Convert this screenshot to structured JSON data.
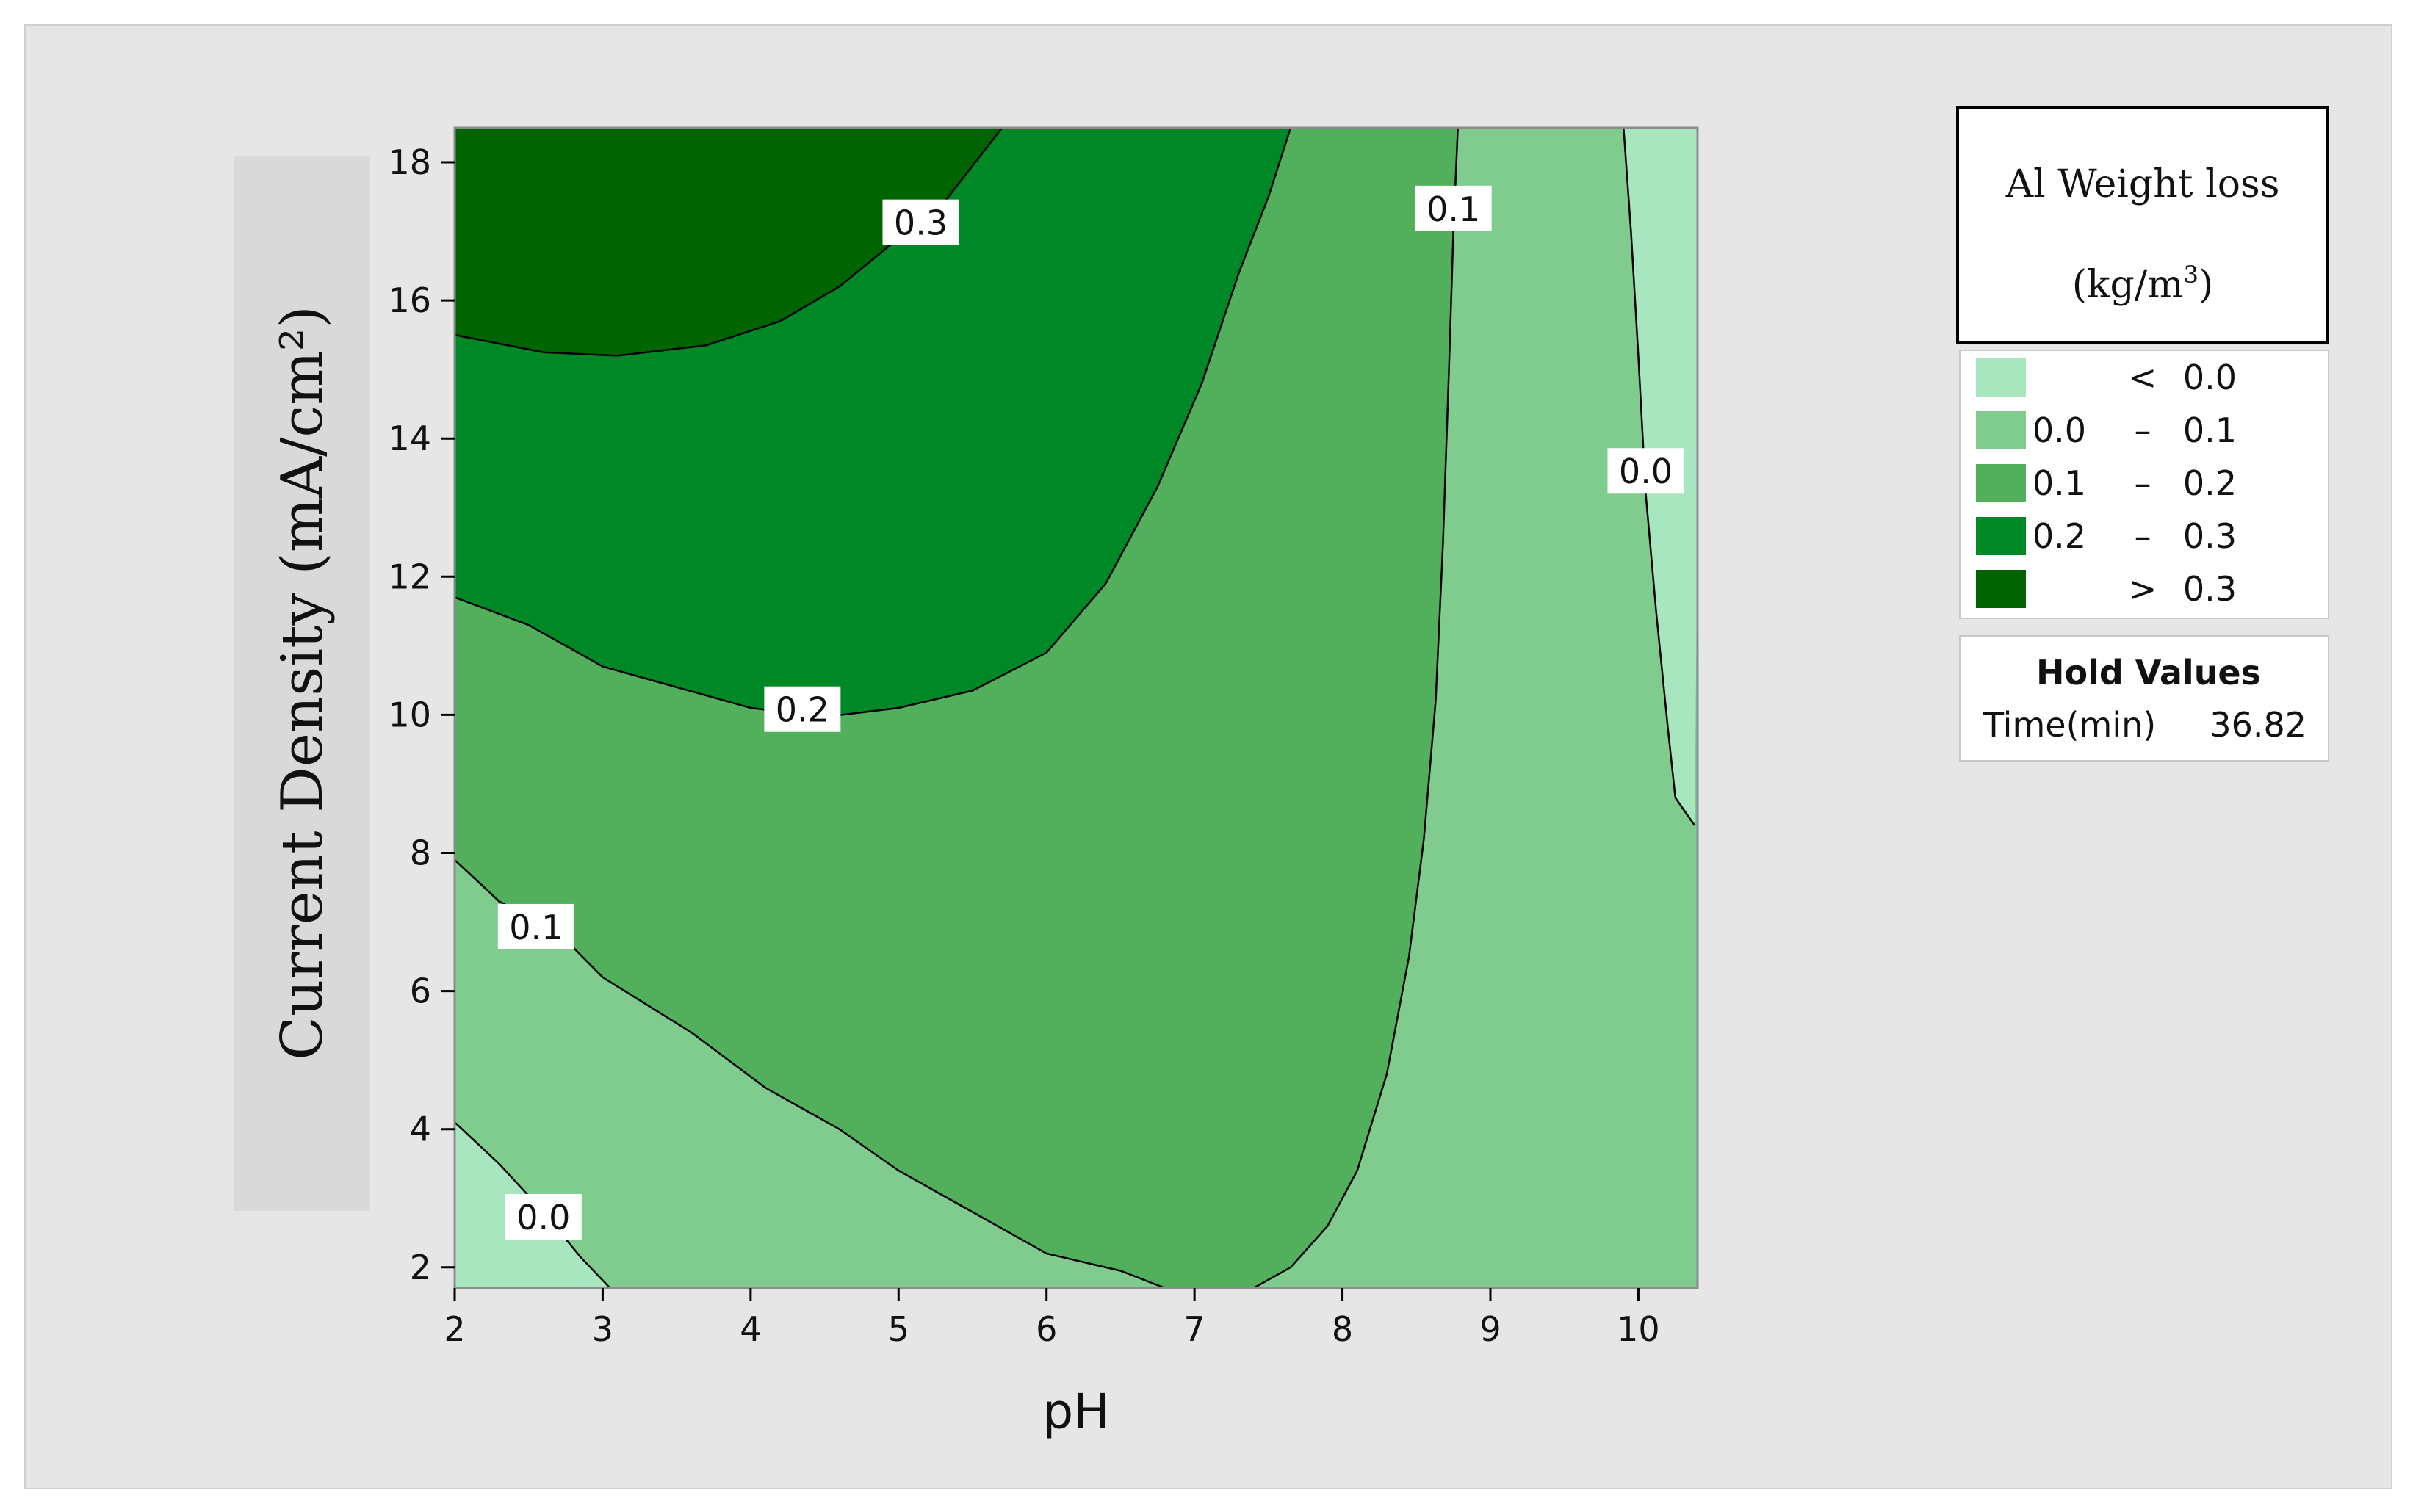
{
  "chart_data": {
    "type": "contour",
    "xlabel": "pH",
    "ylabel": "Current Density (mA/cm²)",
    "xlim": [
      2,
      10.4
    ],
    "ylim": [
      1.7,
      18.5
    ],
    "x_ticks": [
      "2",
      "3",
      "4",
      "5",
      "6",
      "7",
      "8",
      "9",
      "10"
    ],
    "y_ticks": [
      "2",
      "4",
      "6",
      "8",
      "10",
      "12",
      "14",
      "16",
      "18"
    ],
    "regions": [
      {
        "level": "< 0.0",
        "color": "#a8e6bf"
      },
      {
        "level": "0.0 – 0.1",
        "color": "#80cc8f"
      },
      {
        "level": "0.1 – 0.2",
        "color": "#52b05d"
      },
      {
        "level": "0.2 – 0.3",
        "color": "#008726"
      },
      {
        "level": "> 0.3",
        "color": "#006400"
      }
    ],
    "contours": [
      {
        "level": 0.3,
        "label": "0.3",
        "label_at": [
          5.15,
          17.1
        ],
        "points": [
          [
            2,
            15.5
          ],
          [
            2.6,
            15.25
          ],
          [
            3.1,
            15.2
          ],
          [
            3.7,
            15.35
          ],
          [
            4.2,
            15.7
          ],
          [
            4.6,
            16.2
          ],
          [
            5.0,
            16.9
          ],
          [
            5.3,
            17.4
          ],
          [
            5.7,
            18.5
          ]
        ]
      },
      {
        "level": 0.2,
        "label": "0.2",
        "label_at": [
          4.35,
          10.05
        ],
        "points": [
          [
            2,
            11.7
          ],
          [
            2.5,
            11.3
          ],
          [
            3,
            10.7
          ],
          [
            3.5,
            10.4
          ],
          [
            4.0,
            10.1
          ],
          [
            4.5,
            9.97
          ],
          [
            5.0,
            10.1
          ],
          [
            5.5,
            10.35
          ],
          [
            6.0,
            10.9
          ],
          [
            6.4,
            11.9
          ],
          [
            6.75,
            13.3
          ],
          [
            7.05,
            14.8
          ],
          [
            7.3,
            16.4
          ],
          [
            7.5,
            17.5
          ],
          [
            7.65,
            18.5
          ]
        ]
      },
      {
        "level": 0.1,
        "label": "0.1",
        "label_at": [
          2.55,
          6.9
        ],
        "points": [
          [
            2,
            7.9
          ],
          [
            2.3,
            7.3
          ],
          [
            2.7,
            6.85
          ],
          [
            3,
            6.2
          ],
          [
            3.6,
            5.4
          ],
          [
            4.1,
            4.6
          ],
          [
            4.6,
            4.0
          ],
          [
            5.0,
            3.4
          ],
          [
            5.5,
            2.8
          ],
          [
            6.0,
            2.2
          ],
          [
            6.5,
            1.95
          ],
          [
            6.8,
            1.7
          ]
        ]
      },
      {
        "level": 0.1,
        "label": "0.1",
        "label_at": [
          8.75,
          17.3
        ],
        "points": [
          [
            7.4,
            1.7
          ],
          [
            7.65,
            2.0
          ],
          [
            7.9,
            2.6
          ],
          [
            8.1,
            3.4
          ],
          [
            8.3,
            4.8
          ],
          [
            8.45,
            6.5
          ],
          [
            8.55,
            8.2
          ],
          [
            8.63,
            10.2
          ],
          [
            8.68,
            12.5
          ],
          [
            8.72,
            15.0
          ],
          [
            8.75,
            17.0
          ],
          [
            8.78,
            18.5
          ]
        ]
      },
      {
        "level": 0.0,
        "label": "0.0",
        "label_at": [
          2.6,
          2.7
        ],
        "points": [
          [
            2,
            4.1
          ],
          [
            2.3,
            3.5
          ],
          [
            2.6,
            2.8
          ],
          [
            2.85,
            2.15
          ],
          [
            3.05,
            1.7
          ]
        ]
      },
      {
        "level": 0.0,
        "label": "0.0",
        "label_at": [
          10.05,
          13.5
        ],
        "points": [
          [
            9.9,
            18.5
          ],
          [
            9.95,
            17.0
          ],
          [
            10.0,
            15.2
          ],
          [
            10.05,
            13.2
          ],
          [
            10.12,
            11.5
          ],
          [
            10.2,
            9.8
          ],
          [
            10.25,
            8.8
          ],
          [
            10.38,
            8.4
          ]
        ]
      }
    ]
  },
  "legend": {
    "title_line1": "Al Weight loss",
    "title_line2": "(kg/m",
    "title_sup": "3",
    "title_close": ")",
    "items": [
      {
        "from": "",
        "sep": "<",
        "to": "0.0",
        "color": "#a8e6bf"
      },
      {
        "from": "0.0",
        "sep": "–",
        "to": "0.1",
        "color": "#80cc8f"
      },
      {
        "from": "0.1",
        "sep": "–",
        "to": "0.2",
        "color": "#52b05d"
      },
      {
        "from": "0.2",
        "sep": "–",
        "to": "0.3",
        "color": "#008726"
      },
      {
        "from": "",
        "sep": ">",
        "to": "0.3",
        "color": "#006400"
      }
    ]
  },
  "hold_values": {
    "title": "Hold Values",
    "name": "Time(min)",
    "value": "36.82"
  },
  "colors": {
    "outer_background": "#e6e6e6",
    "ylabel_band": "#d9d9d9"
  }
}
